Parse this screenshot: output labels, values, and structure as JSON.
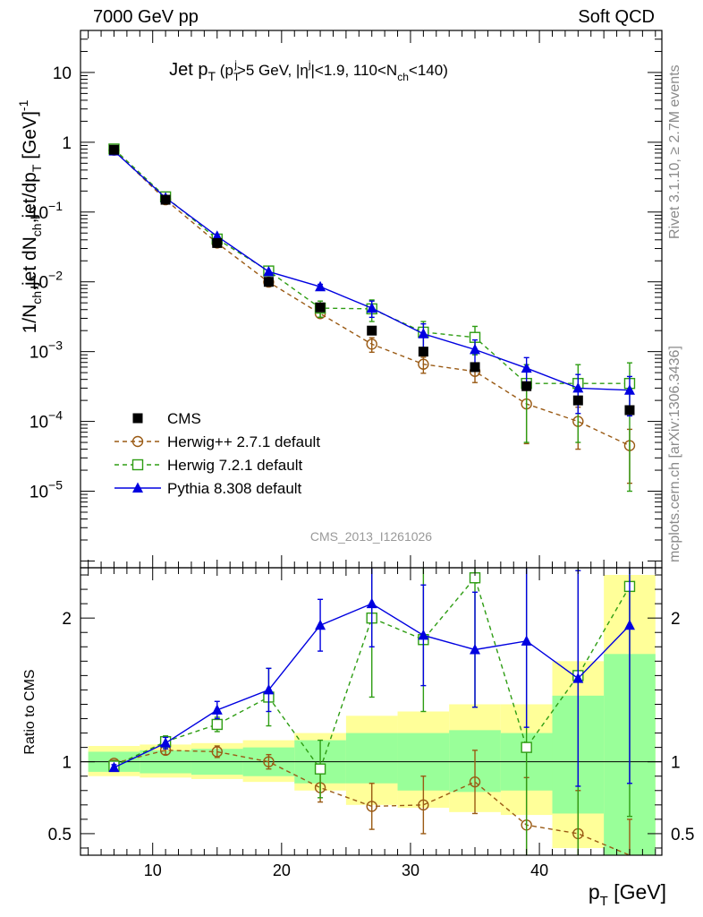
{
  "header": {
    "left": "7000 GeV pp",
    "right": "Soft QCD"
  },
  "analysis_id": "CMS_2013_I1261026",
  "sidebar": {
    "rivet": "Rivet 3.1.10, ≥ 2.7M events",
    "source": "mcplots.cern.ch [arXiv:1306.3436]"
  },
  "chart_data": [
    {
      "type": "scatter",
      "panel": "main",
      "title_parts": [
        "Jet p",
        "T",
        " (p",
        "T",
        "j",
        ">5 GeV, |η",
        "j",
        "|<1.9, 110<N",
        "ch",
        "<140)"
      ],
      "ylabel_parts": [
        "1/N",
        "ch",
        ",jet dN",
        "ch",
        ",jet/dp",
        "T",
        " [GeV]",
        "-1"
      ],
      "xlabel_parts": [
        "p",
        "T",
        " [GeV]"
      ],
      "y_scale": "log",
      "ylim": [
        8e-07,
        40
      ],
      "xlim": [
        4.4,
        49.5
      ],
      "x_ticks": [
        10,
        20,
        30,
        40
      ],
      "y_ticks": [
        {
          "v": 10,
          "b": "10",
          "e": ""
        },
        {
          "v": 1,
          "b": "1",
          "e": ""
        },
        {
          "v": 0.1,
          "b": "10",
          "e": "−1"
        },
        {
          "v": 0.01,
          "b": "10",
          "e": "−2"
        },
        {
          "v": 0.001,
          "b": "10",
          "e": "−3"
        },
        {
          "v": 0.0001,
          "b": "10",
          "e": "−4"
        },
        {
          "v": 1e-05,
          "b": "10",
          "e": "−5"
        }
      ],
      "legend_position": "lower-left",
      "series": [
        {
          "name": "CMS",
          "color": "#000000",
          "marker": "square-filled",
          "x": [
            7,
            11,
            15,
            19,
            23,
            27,
            31,
            35,
            39,
            43,
            47
          ],
          "y": [
            0.78,
            0.15,
            0.036,
            0.01,
            0.0043,
            0.002,
            0.001,
            0.0006,
            0.00032,
            0.0002,
            0.000145
          ]
        },
        {
          "name": "Herwig++ 2.7.1 default",
          "color": "#9a5a14",
          "marker": "circle-open",
          "dash": true,
          "x": [
            7,
            11,
            15,
            19,
            23,
            27,
            31,
            35,
            39,
            43,
            47
          ],
          "y": [
            0.77,
            0.15,
            0.036,
            0.0099,
            0.0035,
            0.00128,
            0.00066,
            0.00052,
            0.000178,
            0.0001,
            4.5e-05
          ],
          "err": [
            0,
            0,
            0,
            0,
            0.0004,
            0.0003,
            0.00017,
            0.00016,
            0.00013,
            6e-05,
            3.2e-05
          ]
        },
        {
          "name": "Herwig 7.2.1 default",
          "color": "#2e9d13",
          "marker": "square-open",
          "dash": true,
          "x": [
            7,
            11,
            15,
            19,
            23,
            27,
            31,
            35,
            39,
            43,
            47
          ],
          "y": [
            0.8,
            0.165,
            0.041,
            0.0143,
            0.0042,
            0.0041,
            0.0019,
            0.0016,
            0.00035,
            0.00035,
            0.00035
          ],
          "err": [
            0,
            0,
            0,
            0.0015,
            0.0011,
            0.0014,
            0.0008,
            0.0007,
            0.0003,
            0.0003,
            0.00034
          ]
        },
        {
          "name": "Pythia 8.308 default",
          "color": "#0000e0",
          "marker": "triangle-filled",
          "x": [
            7,
            11,
            15,
            19,
            23,
            27,
            31,
            35,
            39,
            43,
            47
          ],
          "y": [
            0.75,
            0.16,
            0.045,
            0.014,
            0.0085,
            0.0042,
            0.0018,
            0.00107,
            0.00058,
            0.0003,
            0.00028
          ],
          "err": [
            0,
            0,
            0,
            0,
            0.0007,
            0.0011,
            0.0007,
            0.0004,
            0.00024,
            0.00017,
            0.00016
          ]
        }
      ]
    },
    {
      "type": "scatter",
      "panel": "ratio",
      "ylabel": "Ratio to CMS",
      "ylim": [
        0.35,
        2.35
      ],
      "y_ticks": [
        0.5,
        1,
        2
      ],
      "y_tick_labels": [
        "0.5",
        "1",
        "2"
      ],
      "bands": {
        "x_edges": [
          5,
          9,
          13,
          17,
          21,
          25,
          29,
          33,
          37,
          41,
          45,
          49
        ],
        "stat": [
          [
            0.93,
            1.07
          ],
          [
            0.92,
            1.08
          ],
          [
            0.91,
            1.09
          ],
          [
            0.9,
            1.1
          ],
          [
            0.85,
            1.15
          ],
          [
            0.85,
            1.2
          ],
          [
            0.8,
            1.2
          ],
          [
            0.79,
            1.22
          ],
          [
            0.8,
            1.2
          ],
          [
            0.64,
            1.46
          ],
          [
            0.35,
            1.75
          ]
        ],
        "tot": [
          [
            0.9,
            1.11
          ],
          [
            0.89,
            1.12
          ],
          [
            0.88,
            1.13
          ],
          [
            0.86,
            1.15
          ],
          [
            0.8,
            1.2
          ],
          [
            0.7,
            1.32
          ],
          [
            0.68,
            1.35
          ],
          [
            0.65,
            1.4
          ],
          [
            0.63,
            1.4
          ],
          [
            0.4,
            1.7
          ],
          [
            0.35,
            2.3
          ]
        ],
        "stat_color": "#99ff99",
        "tot_color": "#ffff99"
      },
      "series": [
        {
          "name": "Herwig++ 2.7.1 default",
          "color": "#9a5a14",
          "marker": "circle-open",
          "dash": true,
          "x": [
            7,
            11,
            15,
            19,
            23,
            27,
            31,
            35,
            39,
            43,
            47
          ],
          "y": [
            0.99,
            1.08,
            1.07,
            1.0,
            0.82,
            0.69,
            0.7,
            0.86,
            0.56,
            0.5,
            0.3
          ],
          "err": [
            0.02,
            0.03,
            0.04,
            0.05,
            0.1,
            0.16,
            0.2,
            0.22,
            0.33,
            0.3,
            0.3
          ]
        },
        {
          "name": "Herwig 7.2.1 default",
          "color": "#2e9d13",
          "marker": "square-open",
          "dash": true,
          "x": [
            7,
            11,
            15,
            19,
            23,
            27,
            31,
            35,
            39,
            43,
            47
          ],
          "y": [
            0.97,
            1.14,
            1.26,
            1.45,
            0.95,
            2.0,
            1.85,
            2.28,
            1.1,
            1.6,
            2.22
          ],
          "err": [
            0.02,
            0.04,
            0.05,
            0.2,
            0.2,
            0.55,
            0.5,
            0.9,
            1.5,
            1.4,
            1.6
          ]
        },
        {
          "name": "Pythia 8.308 default",
          "color": "#0000e0",
          "marker": "triangle-filled",
          "x": [
            7,
            11,
            15,
            19,
            23,
            27,
            31,
            35,
            39,
            43,
            47
          ],
          "y": [
            0.96,
            1.13,
            1.36,
            1.5,
            1.95,
            2.1,
            1.88,
            1.78,
            1.84,
            1.58,
            1.95
          ],
          "err": [
            0.02,
            0.04,
            0.06,
            0.15,
            0.18,
            0.3,
            0.35,
            0.4,
            0.6,
            0.75,
            1.1
          ]
        }
      ]
    }
  ]
}
